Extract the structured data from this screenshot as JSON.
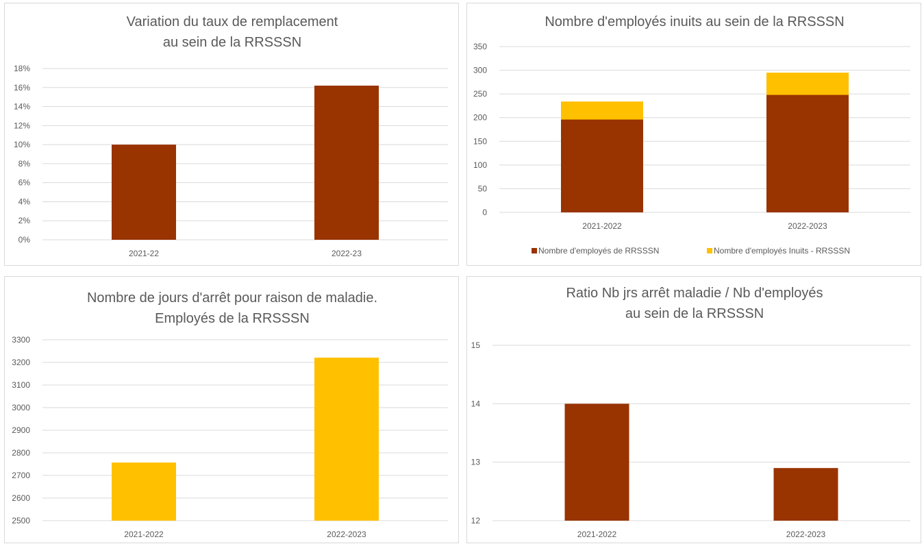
{
  "chart_data": [
    {
      "type": "bar",
      "title_lines": [
        "Variation du taux de remplacement",
        "au sein de la RRSSSN"
      ],
      "categories": [
        "2021-22",
        "2022-23"
      ],
      "values": [
        0.1,
        0.162
      ],
      "ylim": [
        0,
        0.18
      ],
      "yticks": [
        0,
        0.02,
        0.04,
        0.06,
        0.08,
        0.1,
        0.12,
        0.14,
        0.16,
        0.18
      ],
      "ytick_labels": [
        "0%",
        "2%",
        "4%",
        "6%",
        "8%",
        "10%",
        "12%",
        "14%",
        "16%",
        "18%"
      ],
      "grid": true,
      "legend": "none",
      "color": "#993300"
    },
    {
      "type": "bar",
      "stacked": true,
      "title_lines": [
        "Nombre d'employés inuits au sein de la RRSSSN"
      ],
      "categories": [
        "2021-2022",
        "2022-2023"
      ],
      "series": [
        {
          "name": "Nombre d'employés  de RRSSSN",
          "values": [
            196,
            248
          ],
          "color": "#993300"
        },
        {
          "name": "Nombre d'employés Inuits - RRSSSN",
          "values": [
            38,
            47
          ],
          "color": "#FFC000"
        }
      ],
      "ylim": [
        0,
        350
      ],
      "yticks": [
        0,
        50,
        100,
        150,
        200,
        250,
        300,
        350
      ],
      "ytick_labels": [
        "0",
        "50",
        "100",
        "150",
        "200",
        "250",
        "300",
        "350"
      ],
      "grid": true,
      "legend": "bottom"
    },
    {
      "type": "bar",
      "title_lines": [
        "Nombre de jours d'arrêt pour raison de maladie.",
        "Employés de la RRSSSN"
      ],
      "categories": [
        "2021-2022",
        "2022-2023"
      ],
      "values": [
        2757,
        3221
      ],
      "ylim": [
        2500,
        3300
      ],
      "yticks": [
        2500,
        2600,
        2700,
        2800,
        2900,
        3000,
        3100,
        3200,
        3300
      ],
      "ytick_labels": [
        "2500",
        "2600",
        "2700",
        "2800",
        "2900",
        "3000",
        "3100",
        "3200",
        "3300"
      ],
      "grid": true,
      "legend": "none",
      "color": "#FFC000"
    },
    {
      "type": "bar",
      "title_lines": [
        "Ratio Nb jrs arrêt maladie / Nb d'employés",
        "au sein de la RRSSSN"
      ],
      "categories": [
        "2021-2022",
        "2022-2023"
      ],
      "values": [
        14.0,
        12.9
      ],
      "ylim": [
        12,
        15
      ],
      "yticks": [
        12,
        13,
        14,
        15
      ],
      "ytick_labels": [
        "12",
        "13",
        "14",
        "15"
      ],
      "grid": true,
      "legend": "none",
      "color": "#993300"
    }
  ]
}
